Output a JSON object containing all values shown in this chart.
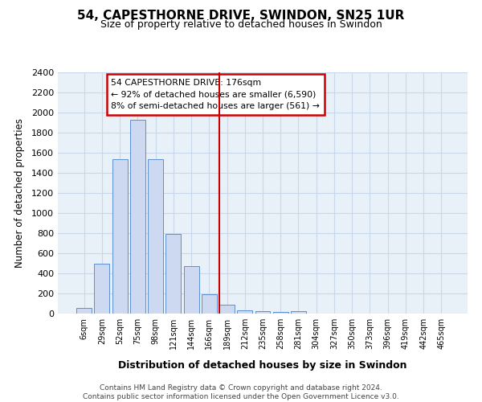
{
  "title": "54, CAPESTHORNE DRIVE, SWINDON, SN25 1UR",
  "subtitle": "Size of property relative to detached houses in Swindon",
  "xlabel": "Distribution of detached houses by size in Swindon",
  "ylabel": "Number of detached properties",
  "bar_labels": [
    "6sqm",
    "29sqm",
    "52sqm",
    "75sqm",
    "98sqm",
    "121sqm",
    "144sqm",
    "166sqm",
    "189sqm",
    "212sqm",
    "235sqm",
    "258sqm",
    "281sqm",
    "304sqm",
    "327sqm",
    "350sqm",
    "373sqm",
    "396sqm",
    "419sqm",
    "442sqm",
    "465sqm"
  ],
  "bar_values": [
    60,
    500,
    1540,
    1930,
    1540,
    790,
    470,
    190,
    90,
    35,
    25,
    15,
    25,
    0,
    0,
    0,
    0,
    0,
    0,
    0,
    0
  ],
  "bar_color": "#ccd9f0",
  "bar_edgecolor": "#5b8fd4",
  "vline_x": 7.55,
  "vline_color": "#cc0000",
  "annotation_text": "54 CAPESTHORNE DRIVE: 176sqm\n← 92% of detached houses are smaller (6,590)\n8% of semi-detached houses are larger (561) →",
  "annotation_box_color": "#ffffff",
  "annotation_box_edgecolor": "#cc0000",
  "ylim": [
    0,
    2400
  ],
  "yticks": [
    0,
    200,
    400,
    600,
    800,
    1000,
    1200,
    1400,
    1600,
    1800,
    2000,
    2200,
    2400
  ],
  "grid_color": "#c8d8ea",
  "background_color": "#e8f0f8",
  "footer_line1": "Contains HM Land Registry data © Crown copyright and database right 2024.",
  "footer_line2": "Contains public sector information licensed under the Open Government Licence v3.0."
}
